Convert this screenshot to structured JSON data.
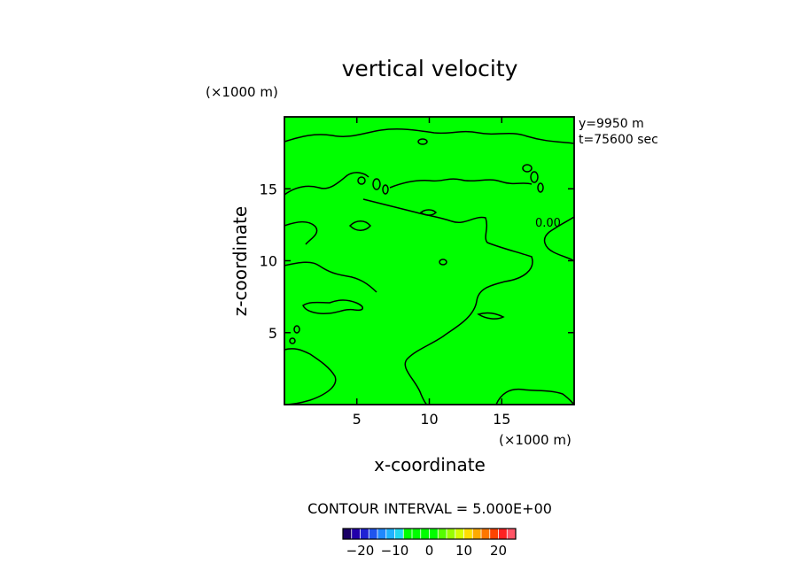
{
  "chart_data": {
    "type": "heatmap",
    "title": "vertical velocity",
    "xlabel": "x-coordinate",
    "ylabel": "z-coordinate",
    "x_unit": "(×1000 m)",
    "y_unit": "(×1000 m)",
    "xlim": [
      0,
      20
    ],
    "ylim": [
      0,
      20
    ],
    "x_ticks": [
      5,
      10,
      15
    ],
    "y_ticks": [
      5,
      10,
      15
    ],
    "x_tick_labels": [
      "5",
      "10",
      "15"
    ],
    "y_tick_labels": [
      "5",
      "10",
      "15"
    ],
    "annotations": [
      "y=9950  m",
      "t=75600 sec"
    ],
    "contour_interval_label": "CONTOUR INTERVAL = 5.000E+00",
    "contour_labels": [
      "0.00"
    ],
    "field_value_approx": 0,
    "colorbar": {
      "range": [
        -25,
        25
      ],
      "tick_values": [
        -20,
        -10,
        0,
        10,
        20
      ],
      "tick_labels": [
        "−20",
        "−10",
        "0",
        "10",
        "20"
      ],
      "colors": [
        "#1a0066",
        "#2200aa",
        "#1f22d4",
        "#1f55ee",
        "#1f88ff",
        "#1fb2ff",
        "#22d8f0",
        "#00ff00",
        "#00ff00",
        "#00ff00",
        "#00ff00",
        "#55ff00",
        "#99ff00",
        "#d4ff00",
        "#ffdd00",
        "#ffaa00",
        "#ff7700",
        "#ff4400",
        "#ff2222",
        "#ff5566"
      ]
    }
  }
}
